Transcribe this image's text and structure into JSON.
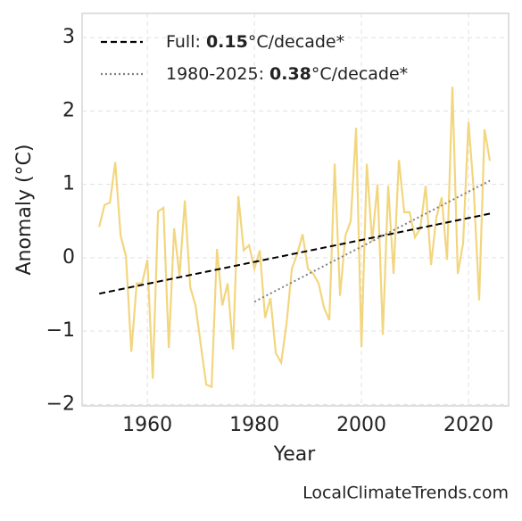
{
  "chart_data": {
    "type": "line",
    "xlabel": "Year",
    "ylabel": "Anomaly (°C)",
    "source": "LocalClimateTrends.com",
    "xlim": [
      1947.8,
      2027.5
    ],
    "ylim": [
      -2.02,
      3.33
    ],
    "xticks": [
      1960,
      1980,
      2000,
      2020
    ],
    "yticks": [
      {
        "value": -2,
        "label": "−2"
      },
      {
        "value": -1,
        "label": "−1"
      },
      0,
      1,
      2,
      3
    ],
    "grid": true,
    "legend": "upper left",
    "series": [
      {
        "color": "#f2d67e",
        "style": "solid",
        "x": [
          1951,
          1952,
          1953,
          1954,
          1955,
          1956,
          1957,
          1958,
          1959,
          1960,
          1961,
          1962,
          1963,
          1964,
          1965,
          1966,
          1967,
          1968,
          1969,
          1970,
          1971,
          1972,
          1973,
          1974,
          1975,
          1976,
          1977,
          1978,
          1979,
          1980,
          1981,
          1982,
          1983,
          1984,
          1985,
          1986,
          1987,
          1988,
          1989,
          1990,
          1991,
          1992,
          1993,
          1994,
          1995,
          1996,
          1997,
          1998,
          1999,
          2000,
          2001,
          2002,
          2003,
          2004,
          2005,
          2006,
          2007,
          2008,
          2009,
          2010,
          2011,
          2012,
          2013,
          2014,
          2015,
          2016,
          2017,
          2018,
          2019,
          2020,
          2021,
          2022,
          2023,
          2024
        ],
        "values": [
          0.42,
          0.72,
          0.75,
          1.3,
          0.3,
          0.02,
          -1.28,
          -0.35,
          -0.35,
          -0.03,
          -1.65,
          0.63,
          0.68,
          -1.23,
          0.4,
          -0.25,
          0.78,
          -0.4,
          -0.65,
          -1.2,
          -1.73,
          -1.76,
          0.12,
          -0.65,
          -0.35,
          -1.25,
          0.84,
          0.1,
          0.17,
          -0.15,
          0.1,
          -0.82,
          -0.55,
          -1.3,
          -1.43,
          -0.9,
          -0.15,
          0.05,
          0.32,
          -0.15,
          -0.22,
          -0.35,
          -0.68,
          -0.85,
          1.28,
          -0.52,
          0.3,
          0.5,
          1.77,
          -1.22,
          1.28,
          0.22,
          1.0,
          -1.05,
          0.98,
          -0.22,
          1.33,
          0.62,
          0.62,
          0.28,
          0.4,
          0.98,
          -0.1,
          0.55,
          0.82,
          -0.03,
          2.33,
          -0.22,
          0.2,
          1.85,
          0.9,
          -0.58,
          1.75,
          1.32
        ]
      },
      {
        "name": "Full: 0.15°C/decade*",
        "color": "#000000",
        "style": "dashed",
        "x": [
          1951,
          2024
        ],
        "values": [
          -0.49,
          0.6
        ]
      },
      {
        "name": "1980-2025: 0.38°C/decade*",
        "color": "#808080",
        "style": "dotted",
        "x": [
          1980,
          2024
        ],
        "values": [
          -0.6,
          1.05
        ]
      }
    ]
  }
}
